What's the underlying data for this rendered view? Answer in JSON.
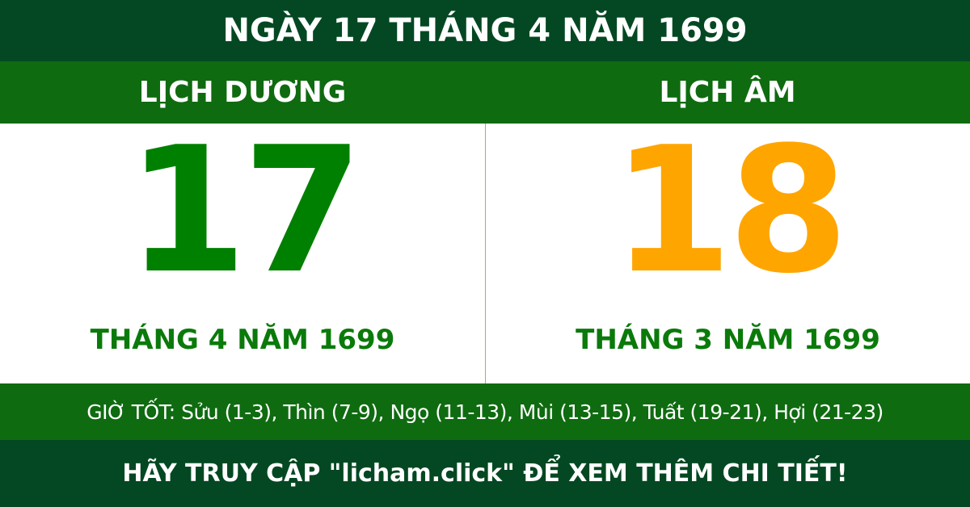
{
  "title": "NGÀY 17 THÁNG 4 NĂM 1699",
  "solar": {
    "label": "LỊCH DƯƠNG",
    "day": "17",
    "month_year": "THÁNG 4 NĂM 1699",
    "color": "#008000"
  },
  "lunar": {
    "label": "LỊCH ÂM",
    "day": "18",
    "month_year": "THÁNG 3 NĂM 1699",
    "color": "#ffa500"
  },
  "good_hours": "GIỜ TỐT: Sửu (1-3), Thìn (7-9), Ngọ (11-13), Mùi (13-15), Tuất (19-21), Hợi (21-23)",
  "footer": "HÃY TRUY CẬP \"licham.click\" ĐỂ XEM THÊM CHI TIẾT!",
  "colors": {
    "dark_green": "#034822",
    "green": "#0f6b10"
  }
}
